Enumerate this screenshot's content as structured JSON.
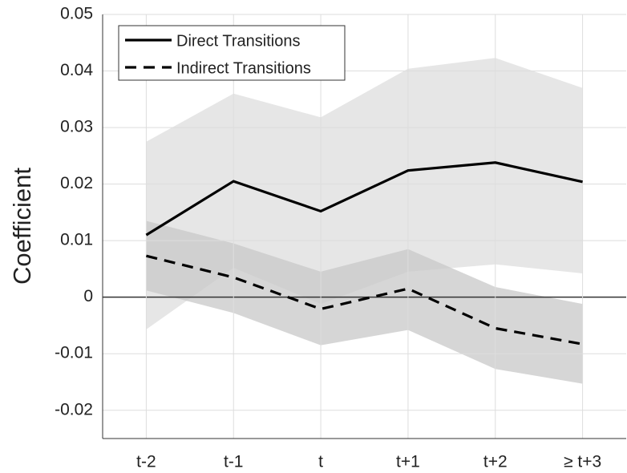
{
  "chart_data": {
    "type": "line",
    "y_label": "Coefficient",
    "categories": [
      "t-2",
      "t-1",
      "t",
      "t+1",
      "t+2",
      "≥ t+3"
    ],
    "ylim": [
      -0.025,
      0.05
    ],
    "yticks": [
      -0.02,
      -0.01,
      0,
      0.01,
      0.02,
      0.03,
      0.04,
      0.05
    ],
    "grid": true,
    "legend": "upper left",
    "series": [
      {
        "name": "Direct Transitions",
        "color": "#000000",
        "dash": false,
        "band_color": "#e6e6e6",
        "values": [
          0.011,
          0.0205,
          0.0152,
          0.0224,
          0.0238,
          0.0204
        ],
        "upper": [
          0.0275,
          0.036,
          0.0318,
          0.0404,
          0.0423,
          0.037
        ],
        "lower": [
          -0.0057,
          0.0052,
          -0.0012,
          0.0045,
          0.0058,
          0.0042
        ]
      },
      {
        "name": "Indirect Transitions",
        "color": "#000000",
        "dash": true,
        "band_color": "#c8c8c8",
        "values": [
          0.0073,
          0.0035,
          -0.0021,
          0.0015,
          -0.0055,
          -0.0083
        ],
        "upper": [
          0.0135,
          0.0095,
          0.0045,
          0.0085,
          0.0018,
          -0.0012
        ],
        "lower": [
          0.0012,
          -0.0028,
          -0.0085,
          -0.0058,
          -0.0127,
          -0.0153
        ]
      }
    ]
  }
}
